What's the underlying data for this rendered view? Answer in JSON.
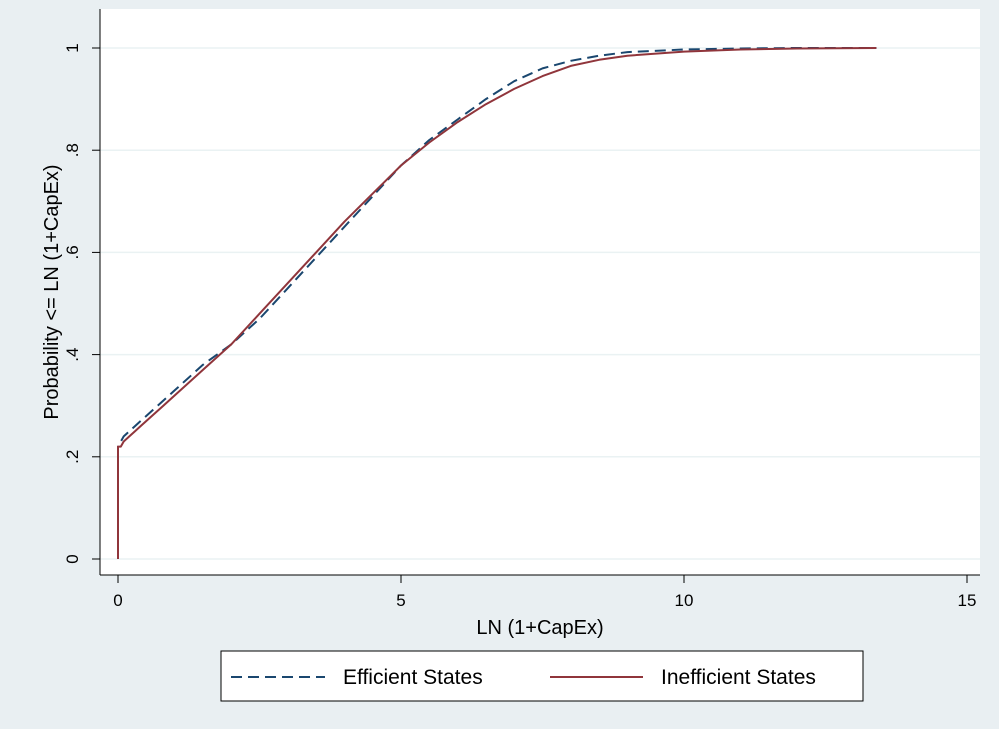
{
  "chart_data": {
    "type": "line",
    "title": "",
    "xlabel": "LN (1+CapEx)",
    "ylabel": "Probability <= LN (1+CapEx)",
    "xlim": [
      0,
      15
    ],
    "ylim": [
      0,
      1
    ],
    "x_ticks": [
      0,
      5,
      10,
      15
    ],
    "x_tick_labels": [
      "0",
      "5",
      "10",
      "15"
    ],
    "y_ticks": [
      0,
      0.2,
      0.4,
      0.6,
      0.8,
      1
    ],
    "y_tick_labels": [
      "0",
      ".2",
      ".4",
      ".6",
      ".8",
      "1"
    ],
    "grid": "horizontal",
    "legend_position": "bottom",
    "series": [
      {
        "name": "Efficient States",
        "color": "#1a476f",
        "style": "dashed",
        "points": [
          [
            0,
            0
          ],
          [
            0,
            0.22
          ],
          [
            0.05,
            0.23
          ],
          [
            0.1,
            0.24
          ],
          [
            0.2,
            0.25
          ],
          [
            0.3,
            0.26
          ],
          [
            0.4,
            0.27
          ],
          [
            0.6,
            0.29
          ],
          [
            0.8,
            0.31
          ],
          [
            1.0,
            0.33
          ],
          [
            1.5,
            0.38
          ],
          [
            2.0,
            0.42
          ],
          [
            2.5,
            0.47
          ],
          [
            3.0,
            0.53
          ],
          [
            3.5,
            0.59
          ],
          [
            4.0,
            0.65
          ],
          [
            4.5,
            0.71
          ],
          [
            5.0,
            0.77
          ],
          [
            5.5,
            0.82
          ],
          [
            6.0,
            0.86
          ],
          [
            6.5,
            0.9
          ],
          [
            7.0,
            0.935
          ],
          [
            7.5,
            0.96
          ],
          [
            8.0,
            0.975
          ],
          [
            8.5,
            0.985
          ],
          [
            9.0,
            0.992
          ],
          [
            10.0,
            0.997
          ],
          [
            11.0,
            0.999
          ],
          [
            12.0,
            1.0
          ],
          [
            13.4,
            1.0
          ]
        ]
      },
      {
        "name": "Inefficient States",
        "color": "#90353b",
        "style": "solid",
        "points": [
          [
            0,
            0
          ],
          [
            0,
            0.22
          ],
          [
            0.05,
            0.22
          ],
          [
            0.1,
            0.23
          ],
          [
            0.2,
            0.24
          ],
          [
            0.3,
            0.25
          ],
          [
            0.4,
            0.26
          ],
          [
            0.6,
            0.28
          ],
          [
            0.8,
            0.3
          ],
          [
            1.0,
            0.32
          ],
          [
            1.5,
            0.37
          ],
          [
            2.0,
            0.42
          ],
          [
            2.5,
            0.48
          ],
          [
            3.0,
            0.54
          ],
          [
            3.5,
            0.6
          ],
          [
            4.0,
            0.66
          ],
          [
            4.5,
            0.715
          ],
          [
            5.0,
            0.77
          ],
          [
            5.5,
            0.815
          ],
          [
            6.0,
            0.855
          ],
          [
            6.5,
            0.89
          ],
          [
            7.0,
            0.92
          ],
          [
            7.5,
            0.945
          ],
          [
            8.0,
            0.965
          ],
          [
            8.5,
            0.977
          ],
          [
            9.0,
            0.985
          ],
          [
            10.0,
            0.993
          ],
          [
            11.0,
            0.997
          ],
          [
            12.0,
            0.999
          ],
          [
            13.4,
            1.0
          ]
        ]
      }
    ]
  }
}
